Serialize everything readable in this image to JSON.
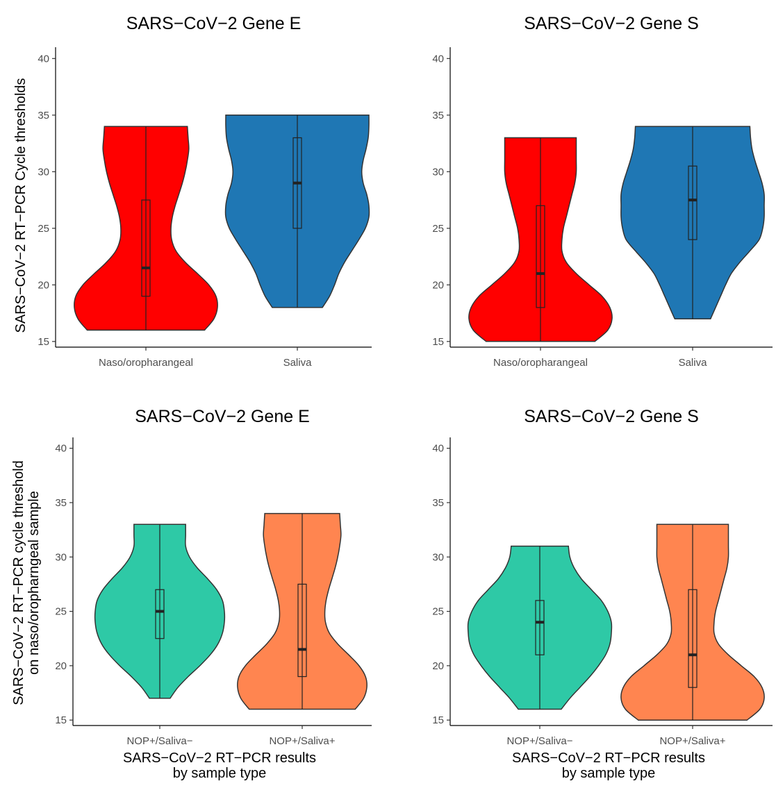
{
  "chart_data": [
    {
      "type": "violin",
      "title": "SARS−CoV−2 Gene E",
      "ylabel": "SARS−CoV−2 RT−PCR Cycle thresholds",
      "xlabel": "",
      "ylim": [
        14.5,
        41
      ],
      "yticks": [
        15,
        20,
        25,
        30,
        35,
        40
      ],
      "grid": false,
      "categories": [
        "Naso/oropharangeal",
        "Saliva"
      ],
      "series": [
        {
          "category": "Naso/oropharangeal",
          "color": "#ff0000",
          "min": 16,
          "q1": 19,
          "median": 21.5,
          "q3": 27.5,
          "max": 34,
          "density_y": [
            16,
            17,
            18,
            19,
            20,
            21,
            22,
            23,
            24,
            25,
            26,
            27,
            28,
            29,
            30,
            31,
            32,
            33,
            34
          ],
          "density_w": [
            0.82,
            0.95,
            1.0,
            0.98,
            0.88,
            0.72,
            0.55,
            0.42,
            0.36,
            0.35,
            0.37,
            0.41,
            0.46,
            0.51,
            0.55,
            0.58,
            0.6,
            0.59,
            0.58
          ]
        },
        {
          "category": "Saliva",
          "color": "#1f77b4",
          "min": 18,
          "q1": 25,
          "median": 29,
          "q3": 33,
          "max": 35,
          "density_y": [
            18,
            19,
            20,
            21,
            22,
            23,
            24,
            25,
            26,
            27,
            28,
            29,
            30,
            31,
            32,
            33,
            34,
            35
          ],
          "density_w": [
            0.35,
            0.45,
            0.52,
            0.58,
            0.66,
            0.76,
            0.86,
            0.95,
            1.0,
            1.0,
            0.97,
            0.92,
            0.9,
            0.92,
            0.96,
            0.99,
            1.0,
            1.0
          ]
        }
      ]
    },
    {
      "type": "violin",
      "title": "SARS−CoV−2 Gene S",
      "ylabel": "",
      "xlabel": "",
      "ylim": [
        14.5,
        41
      ],
      "yticks": [
        15,
        20,
        25,
        30,
        35,
        40
      ],
      "grid": false,
      "categories": [
        "Naso/oropharangeal",
        "Saliva"
      ],
      "series": [
        {
          "category": "Naso/oropharangeal",
          "color": "#ff0000",
          "min": 15,
          "q1": 18,
          "median": 21,
          "q3": 27,
          "max": 33,
          "density_y": [
            15,
            16,
            17,
            18,
            19,
            20,
            21,
            22,
            23,
            24,
            25,
            26,
            27,
            28,
            29,
            30,
            31,
            32,
            33
          ],
          "density_w": [
            0.76,
            0.94,
            1.0,
            0.97,
            0.86,
            0.68,
            0.5,
            0.36,
            0.3,
            0.3,
            0.32,
            0.36,
            0.4,
            0.44,
            0.48,
            0.5,
            0.5,
            0.5,
            0.5
          ]
        },
        {
          "category": "Saliva",
          "color": "#1f77b4",
          "min": 17,
          "q1": 24,
          "median": 27.5,
          "q3": 30.5,
          "max": 34,
          "density_y": [
            17,
            18,
            19,
            20,
            21,
            22,
            23,
            24,
            25,
            26,
            27,
            28,
            29,
            30,
            31,
            32,
            33,
            34
          ],
          "density_w": [
            0.25,
            0.32,
            0.39,
            0.46,
            0.54,
            0.66,
            0.8,
            0.93,
            0.98,
            1.0,
            1.0,
            1.0,
            0.97,
            0.92,
            0.87,
            0.83,
            0.81,
            0.8
          ]
        }
      ]
    },
    {
      "type": "violin",
      "title": "SARS−CoV−2 Gene E",
      "ylabel": "SARS−CoV−2 RT−PCR cycle threshold\non naso/oropharngeal sample",
      "xlabel": "SARS−CoV−2 RT−PCR results\nby sample type",
      "ylim": [
        14.5,
        41
      ],
      "yticks": [
        15,
        20,
        25,
        30,
        35,
        40
      ],
      "grid": false,
      "categories": [
        "NOP+/Saliva−",
        "NOP+/Saliva+"
      ],
      "series": [
        {
          "category": "NOP+/Saliva−",
          "color": "#2ec9a6",
          "min": 17,
          "q1": 22.5,
          "median": 25,
          "q3": 27,
          "max": 33,
          "density_y": [
            17,
            18,
            19,
            20,
            21,
            22,
            23,
            24,
            25,
            26,
            27,
            28,
            29,
            30,
            31,
            32,
            33
          ],
          "density_w": [
            0.16,
            0.28,
            0.44,
            0.62,
            0.78,
            0.9,
            0.97,
            1.0,
            1.0,
            0.97,
            0.88,
            0.74,
            0.58,
            0.46,
            0.4,
            0.4,
            0.4
          ]
        },
        {
          "category": "NOP+/Saliva+",
          "color": "#ff8550",
          "min": 16,
          "q1": 19,
          "median": 21.5,
          "q3": 27.5,
          "max": 34,
          "density_y": [
            16,
            17,
            18,
            19,
            20,
            21,
            22,
            23,
            24,
            25,
            26,
            27,
            28,
            29,
            30,
            31,
            32,
            33,
            34
          ],
          "density_w": [
            0.82,
            0.95,
            1.0,
            0.98,
            0.88,
            0.72,
            0.55,
            0.42,
            0.36,
            0.35,
            0.37,
            0.41,
            0.46,
            0.51,
            0.55,
            0.58,
            0.6,
            0.59,
            0.58
          ]
        }
      ]
    },
    {
      "type": "violin",
      "title": "SARS−CoV−2 Gene S",
      "ylabel": "",
      "xlabel": "SARS−CoV−2 RT−PCR results\nby sample type",
      "ylim": [
        14.5,
        41
      ],
      "yticks": [
        15,
        20,
        25,
        30,
        35,
        40
      ],
      "grid": false,
      "categories": [
        "NOP+/Saliva−",
        "NOP+/Saliva+"
      ],
      "series": [
        {
          "category": "NOP+/Saliva−",
          "color": "#2ec9a6",
          "min": 16,
          "q1": 21,
          "median": 24,
          "q3": 26,
          "max": 31,
          "density_y": [
            16,
            17,
            18,
            19,
            20,
            21,
            22,
            23,
            24,
            25,
            26,
            27,
            28,
            29,
            30,
            31
          ],
          "density_w": [
            0.3,
            0.42,
            0.56,
            0.7,
            0.82,
            0.92,
            0.98,
            1.0,
            1.0,
            0.95,
            0.86,
            0.72,
            0.58,
            0.48,
            0.42,
            0.4
          ]
        },
        {
          "category": "NOP+/Saliva+",
          "color": "#ff8550",
          "min": 15,
          "q1": 18,
          "median": 21,
          "q3": 27,
          "max": 33,
          "density_y": [
            15,
            16,
            17,
            18,
            19,
            20,
            21,
            22,
            23,
            24,
            25,
            26,
            27,
            28,
            29,
            30,
            31,
            32,
            33
          ],
          "density_w": [
            0.76,
            0.94,
            1.0,
            0.97,
            0.86,
            0.68,
            0.5,
            0.36,
            0.3,
            0.3,
            0.32,
            0.36,
            0.4,
            0.44,
            0.48,
            0.5,
            0.5,
            0.5,
            0.5
          ]
        }
      ]
    }
  ]
}
